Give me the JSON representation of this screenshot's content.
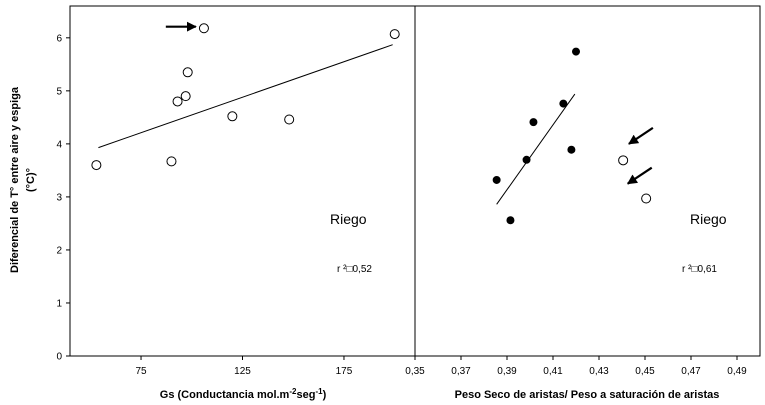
{
  "chart_data": [
    {
      "type": "scatter",
      "panel": "left",
      "ylabel_line1": "Diferencial de T° entre aire y espiga",
      "ylabel_line2": "(°C)°",
      "xlabel": "Gs (Conductancia mol.m",
      "xlabel_sup1": "-2",
      "xlabel_mid": "seg",
      "xlabel_sup2": "-1",
      "xlabel_end": ")",
      "xlim": [
        40,
        210
      ],
      "ylim": [
        0,
        6.6
      ],
      "xticks": [
        75,
        125,
        175
      ],
      "xtick_labels": [
        "75",
        "125",
        "175"
      ],
      "yticks": [
        0,
        1,
        2,
        3,
        4,
        5,
        6
      ],
      "ytick_labels": [
        "0",
        "1",
        "2",
        "3",
        "4",
        "5",
        "6"
      ],
      "annotation": "Riego",
      "r2_label": "r ²□0,52",
      "points": [
        {
          "x": 53,
          "y": 3.6,
          "filled": false
        },
        {
          "x": 90,
          "y": 3.67,
          "filled": false
        },
        {
          "x": 93,
          "y": 4.8,
          "filled": false
        },
        {
          "x": 97,
          "y": 4.9,
          "filled": false
        },
        {
          "x": 98,
          "y": 5.35,
          "filled": false
        },
        {
          "x": 106,
          "y": 6.18,
          "filled": false
        },
        {
          "x": 120,
          "y": 4.52,
          "filled": false
        },
        {
          "x": 148,
          "y": 4.46,
          "filled": false
        },
        {
          "x": 200,
          "y": 6.07,
          "filled": false
        }
      ],
      "trendline": {
        "x": [
          54,
          199
        ],
        "y": [
          3.93,
          5.87
        ]
      },
      "arrows": [
        {
          "direction": "right",
          "tip_x": 102,
          "tip_y": 6.21
        }
      ]
    },
    {
      "type": "scatter",
      "panel": "right",
      "xlabel": "Peso Seco de aristas/ Peso a saturación de aristas",
      "xlim": [
        0.35,
        0.5
      ],
      "ylim": [
        0,
        6.6
      ],
      "xticks": [
        0.35,
        0.37,
        0.39,
        0.41,
        0.43,
        0.45,
        0.47,
        0.49
      ],
      "xtick_labels": [
        "0,35",
        "0,37",
        "0,39",
        "0,41",
        "0,43",
        "0,45",
        "0,47",
        "0,49"
      ],
      "annotation": "Riego",
      "r2_label": "r ²□0,61",
      "points": [
        {
          "x": 0.3855,
          "y": 3.32,
          "filled": true
        },
        {
          "x": 0.3915,
          "y": 2.56,
          "filled": true
        },
        {
          "x": 0.3985,
          "y": 3.7,
          "filled": true
        },
        {
          "x": 0.4015,
          "y": 4.41,
          "filled": true
        },
        {
          "x": 0.4145,
          "y": 4.76,
          "filled": true
        },
        {
          "x": 0.418,
          "y": 3.89,
          "filled": true
        },
        {
          "x": 0.42,
          "y": 5.74,
          "filled": true
        },
        {
          "x": 0.4405,
          "y": 3.69,
          "filled": false
        },
        {
          "x": 0.4505,
          "y": 2.97,
          "filled": false
        }
      ],
      "trendline": {
        "x": [
          0.3855,
          0.4195
        ],
        "y": [
          2.86,
          4.94
        ]
      },
      "arrows": [
        {
          "direction": "down-left",
          "tip_x": 0.443,
          "tip_y": 4.0
        },
        {
          "direction": "down-left",
          "tip_x": 0.4425,
          "tip_y": 3.25
        }
      ]
    }
  ]
}
